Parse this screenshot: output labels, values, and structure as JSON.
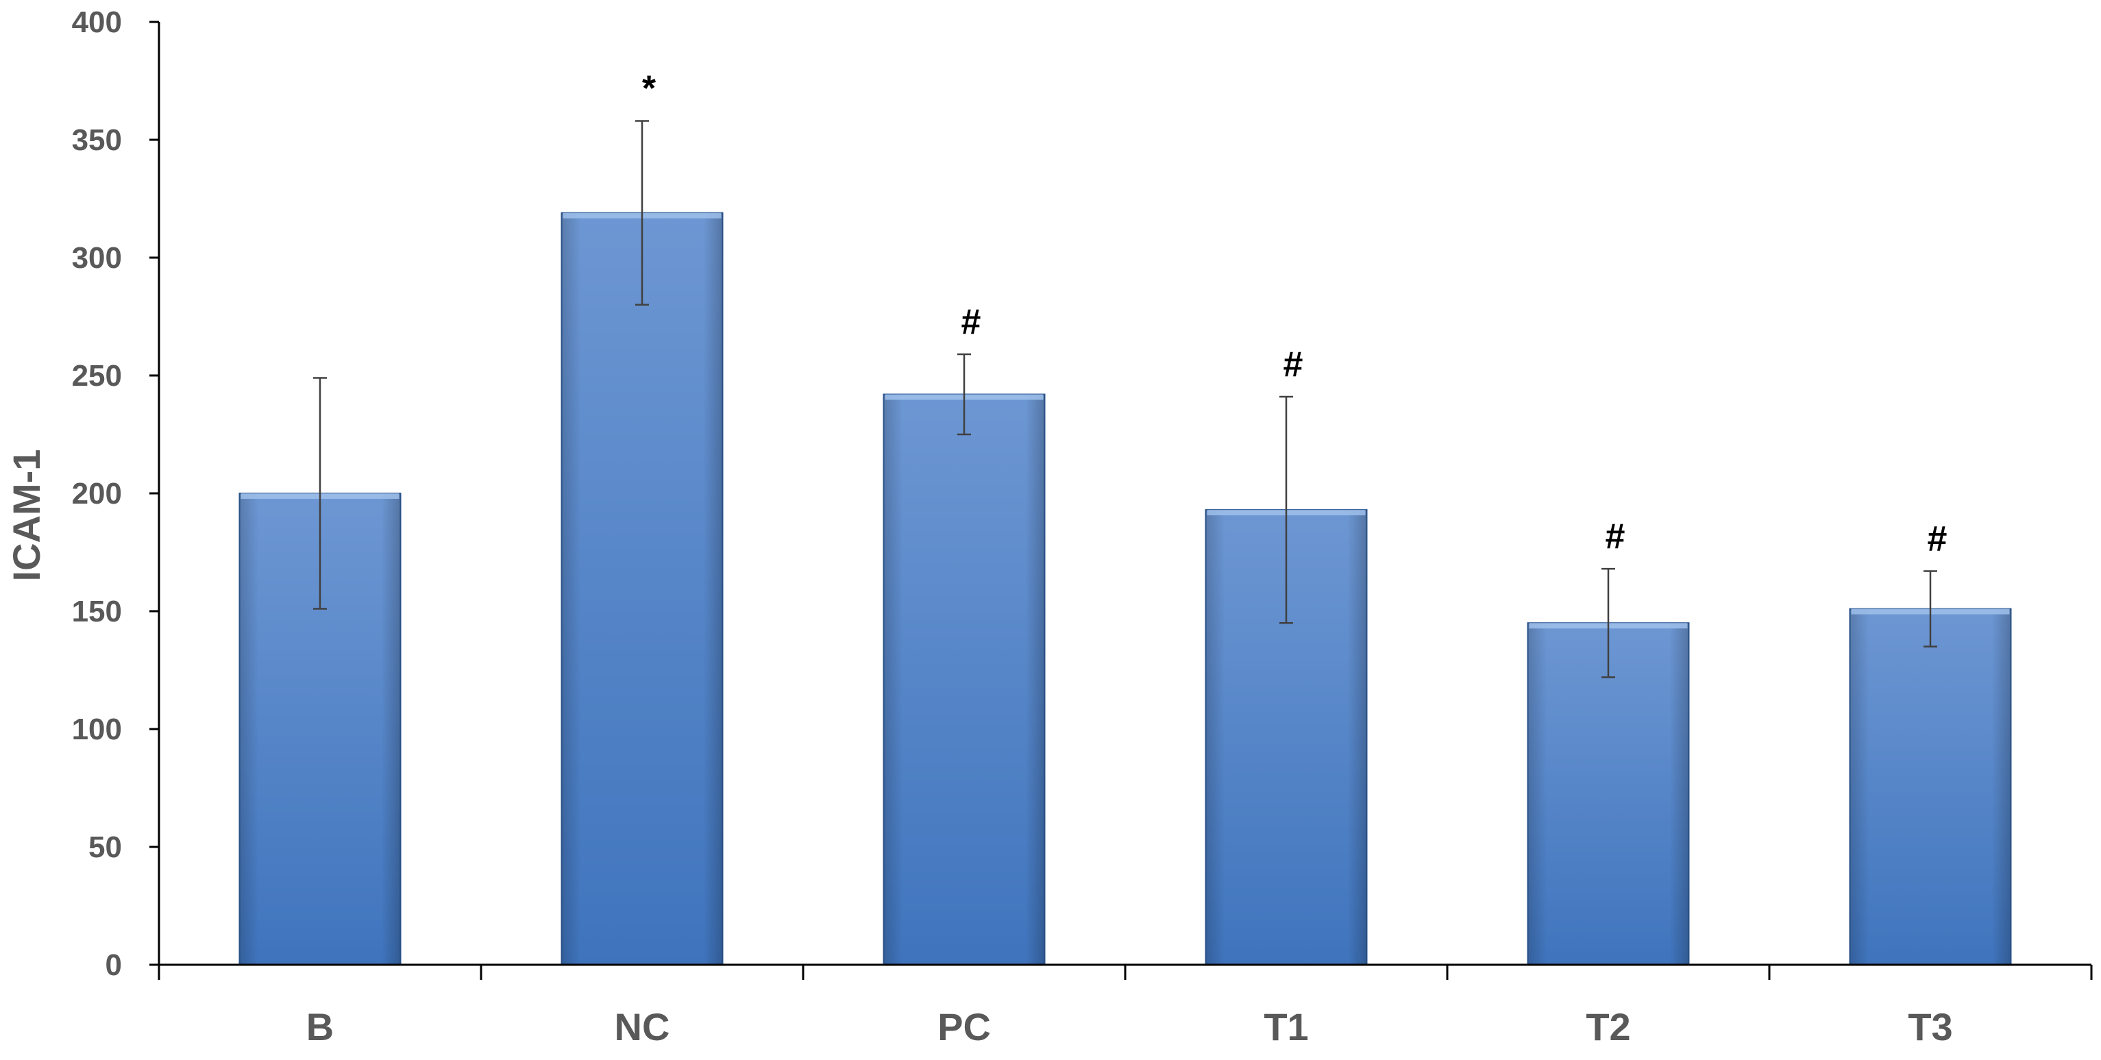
{
  "chart_data": {
    "type": "bar",
    "title": "",
    "xlabel": "",
    "ylabel": "ICAM-1",
    "ylim": [
      0,
      400
    ],
    "yticks": [
      "0",
      "50",
      "100",
      "150",
      "200",
      "250",
      "300",
      "350",
      "400"
    ],
    "categories": [
      "B",
      "NC",
      "PC",
      "T1",
      "T2",
      "T3"
    ],
    "values": [
      200,
      319,
      242,
      193,
      145,
      151
    ],
    "error": [
      49,
      39,
      17,
      48,
      23,
      16
    ],
    "annotations": [
      "",
      "*",
      "#",
      "#",
      "#",
      "#"
    ],
    "grid": false,
    "legend": "none",
    "colors": {
      "bar_light": "#6d97d3",
      "bar_mid": "#4a85cf",
      "bar_dark": "#3d6fb0",
      "bar_edge": "#2f5a94",
      "axis": "#000000",
      "error_bar": "#404040"
    }
  }
}
